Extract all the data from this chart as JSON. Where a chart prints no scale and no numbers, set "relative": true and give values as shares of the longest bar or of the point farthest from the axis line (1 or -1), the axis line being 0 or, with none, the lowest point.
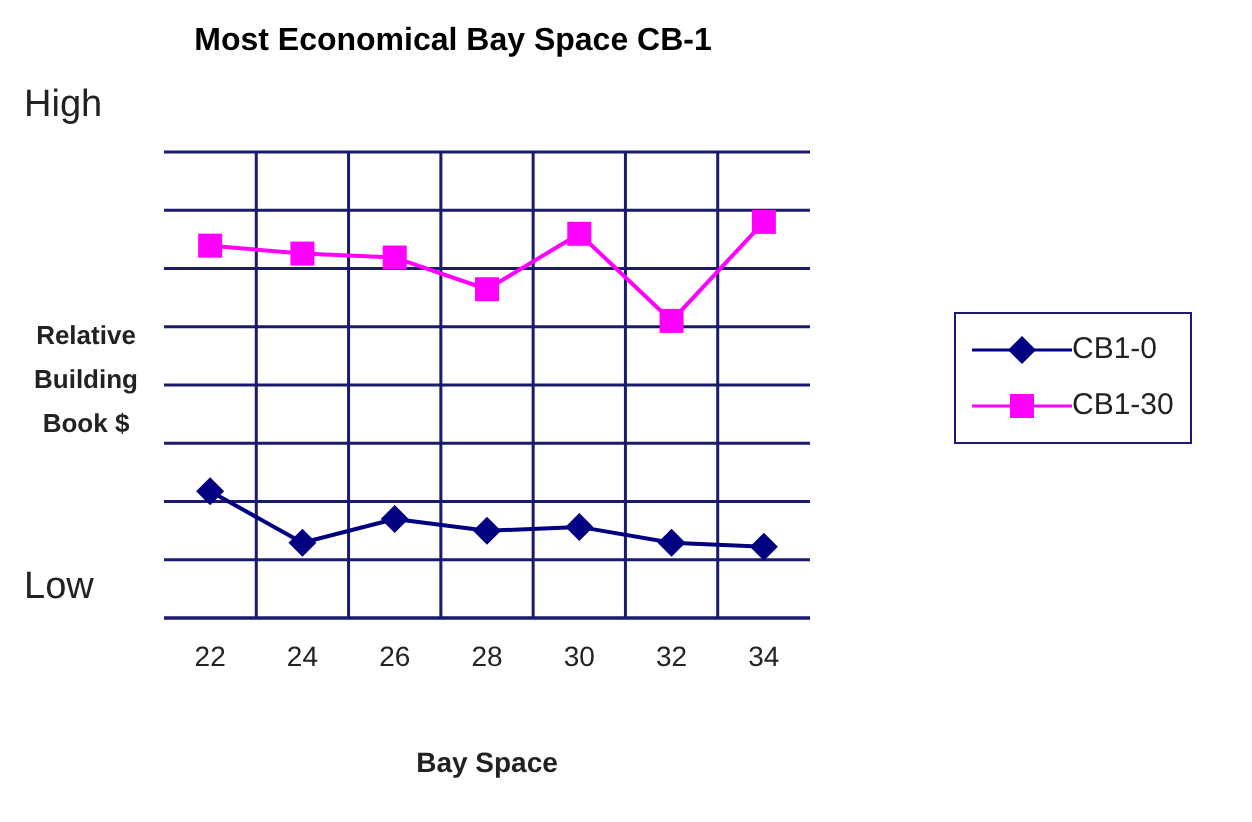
{
  "chart_data": {
    "type": "line",
    "title": "Most Economical Bay Space CB-1",
    "xlabel": "Bay Space",
    "ylabel": "Relative Building Book $",
    "relative": true,
    "annotations": [
      "High",
      "Low"
    ],
    "categories": [
      "22",
      "24",
      "26",
      "28",
      "30",
      "32",
      "34"
    ],
    "series": [
      {
        "name": "CB1-0",
        "color": "#000080",
        "marker": "diamond",
        "values": [
          0.32,
          0.19,
          0.25,
          0.22,
          0.23,
          0.19,
          0.18
        ]
      },
      {
        "name": "CB1-30",
        "color": "#ff00ff",
        "marker": "square",
        "values": [
          0.94,
          0.92,
          0.91,
          0.83,
          0.97,
          0.75,
          1
        ]
      }
    ],
    "grid": true,
    "legend": "right",
    "line_style": "solid"
  }
}
